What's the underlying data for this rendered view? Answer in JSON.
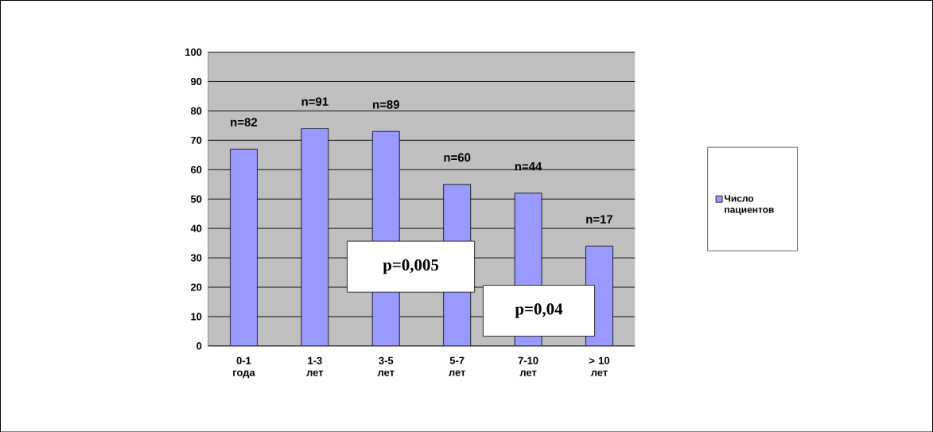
{
  "chart_data": {
    "type": "bar",
    "categories": [
      "0-1 года",
      "1-3 лет",
      "3-5 лет",
      "5-7 лет",
      "7-10 лет",
      "> 10 лет"
    ],
    "series": [
      {
        "name": "Число пациентов",
        "color": "#9999ff",
        "values": [
          67,
          74,
          73,
          55,
          52,
          34
        ]
      }
    ],
    "annotations": [
      {
        "text": "n=82",
        "x": "0-1 года",
        "y": 67
      },
      {
        "text": "n=91",
        "x": "1-3 лет",
        "y": 74
      },
      {
        "text": "n=89",
        "x": "3-5 лет",
        "y": 73
      },
      {
        "text": "n=60",
        "x": "5-7 лет",
        "y": 55
      },
      {
        "text": "n=44",
        "x": "7-10 лет",
        "y": 52
      },
      {
        "text": "n=17",
        "x": "> 10 лет",
        "y": 34
      },
      "p=0,005",
      "p=0,04"
    ],
    "ylim": [
      0,
      100
    ],
    "yticks": [
      0,
      10,
      20,
      30,
      40,
      50,
      60,
      70,
      80,
      90,
      100
    ],
    "grid": "y",
    "legend": "right"
  }
}
